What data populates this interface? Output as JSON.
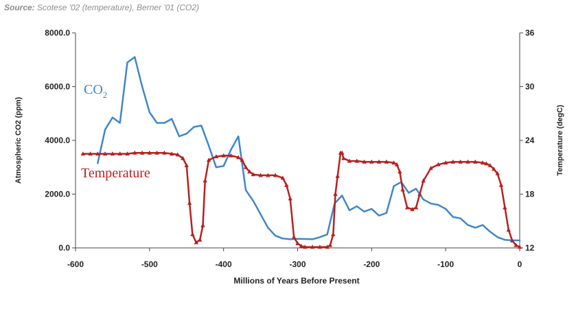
{
  "source": {
    "label": "Source:",
    "text": " Scotese '02 (temperature), Berner '01 (CO2)"
  },
  "colors": {
    "co2": "#3f86c8",
    "temperature": "#b81f1f",
    "axis": "#444444"
  },
  "chart_data": {
    "type": "line",
    "title": "",
    "xlabel": "Millions of Years Before Present",
    "ylabel_left": "Atmospheric CO2 (ppm)",
    "ylabel_right": "Temperature (degC)",
    "xlim": [
      -600,
      0
    ],
    "ylim_left": [
      0,
      8000
    ],
    "ylim_right": [
      12,
      36
    ],
    "x_ticks": [
      "-600",
      "-500",
      "-400",
      "-300",
      "-200",
      "-100",
      "0"
    ],
    "y_ticks_left": [
      "0.0",
      "2000.0",
      "4000.0",
      "6000.0",
      "8000.0"
    ],
    "y_ticks_right": [
      "12",
      "18",
      "24",
      "30",
      "36"
    ],
    "grid": false,
    "annotations": {
      "co2_main": "CO",
      "co2_sub": "2",
      "temperature": "Temperature"
    },
    "series": [
      {
        "name": "CO2",
        "axis": "left",
        "x": [
          -570,
          -560,
          -550,
          -540,
          -530,
          -520,
          -510,
          -500,
          -490,
          -480,
          -470,
          -460,
          -450,
          -440,
          -430,
          -420,
          -410,
          -400,
          -390,
          -380,
          -370,
          -360,
          -350,
          -340,
          -330,
          -320,
          -310,
          -300,
          -290,
          -280,
          -270,
          -260,
          -250,
          -240,
          -230,
          -220,
          -210,
          -200,
          -190,
          -180,
          -170,
          -160,
          -150,
          -140,
          -130,
          -120,
          -110,
          -100,
          -90,
          -80,
          -70,
          -60,
          -50,
          -40,
          -30,
          -20,
          -10,
          0
        ],
        "values": [
          3150,
          4400,
          4850,
          4650,
          6900,
          7100,
          6000,
          5050,
          4650,
          4650,
          4800,
          4150,
          4250,
          4500,
          4550,
          3800,
          3000,
          3050,
          3650,
          4150,
          2150,
          1750,
          1250,
          750,
          450,
          350,
          320,
          340,
          330,
          320,
          400,
          500,
          1650,
          1950,
          1400,
          1550,
          1350,
          1450,
          1200,
          1300,
          2300,
          2450,
          2050,
          2200,
          1800,
          1650,
          1600,
          1450,
          1150,
          1100,
          850,
          750,
          850,
          600,
          400,
          300,
          280,
          280
        ]
      },
      {
        "name": "Temperature",
        "axis": "right",
        "x": [
          -590,
          -580,
          -570,
          -560,
          -550,
          -540,
          -530,
          -520,
          -510,
          -500,
          -490,
          -480,
          -470,
          -462,
          -455,
          -450,
          -446,
          -442,
          -437,
          -432,
          -428,
          -425,
          -420,
          -410,
          -400,
          -390,
          -380,
          -375,
          -370,
          -365,
          -360,
          -350,
          -340,
          -330,
          -320,
          -315,
          -310,
          -305,
          -300,
          -295,
          -290,
          -280,
          -270,
          -260,
          -256,
          -252,
          -249,
          -246,
          -242,
          -240,
          -238,
          -230,
          -220,
          -210,
          -200,
          -190,
          -180,
          -170,
          -166,
          -162,
          -158,
          -152,
          -145,
          -140,
          -135,
          -130,
          -120,
          -110,
          -100,
          -90,
          -80,
          -70,
          -60,
          -50,
          -45,
          -40,
          -35,
          -30,
          -25,
          -20,
          -15,
          -10,
          -5,
          0
        ],
        "values": [
          22.5,
          22.5,
          22.5,
          22.5,
          22.5,
          22.5,
          22.5,
          22.6,
          22.6,
          22.6,
          22.6,
          22.6,
          22.5,
          22.4,
          22.0,
          21.2,
          17.0,
          13.5,
          12.6,
          12.9,
          14.5,
          19.5,
          21.8,
          22.2,
          22.3,
          22.3,
          22.1,
          21.8,
          21.0,
          20.5,
          20.2,
          20.1,
          20.1,
          20.1,
          19.8,
          19.0,
          17.5,
          13.2,
          12.5,
          12.2,
          12.1,
          12.1,
          12.1,
          12.1,
          12.3,
          13.5,
          18.0,
          20.0,
          22.6,
          22.6,
          22.0,
          21.7,
          21.7,
          21.6,
          21.6,
          21.6,
          21.6,
          21.5,
          21.3,
          20.5,
          18.5,
          16.5,
          16.3,
          16.5,
          18.0,
          19.5,
          20.9,
          21.3,
          21.5,
          21.6,
          21.6,
          21.6,
          21.6,
          21.5,
          21.4,
          21.2,
          20.8,
          20.3,
          19.0,
          16.5,
          14.0,
          12.8,
          12.3,
          12.1
        ]
      }
    ]
  }
}
